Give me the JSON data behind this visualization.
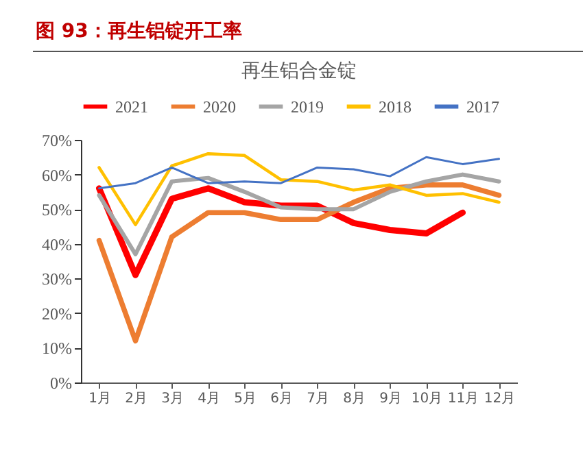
{
  "chart_data": {
    "type": "line",
    "title": "图 93：再生铝锭开工率",
    "subtitle": "再生铝合金锭",
    "categories": [
      "1月",
      "2月",
      "3月",
      "4月",
      "5月",
      "6月",
      "7月",
      "8月",
      "9月",
      "10月",
      "11月",
      "12月"
    ],
    "series": [
      {
        "name": "2021",
        "color": "#ff0000",
        "values": [
          56,
          31,
          53,
          56,
          52,
          51,
          51,
          46,
          44,
          43,
          49,
          null
        ]
      },
      {
        "name": "2020",
        "color": "#ed7d31",
        "values": [
          41,
          12,
          42,
          49,
          49,
          47,
          47,
          52,
          56,
          57,
          57,
          54
        ]
      },
      {
        "name": "2019",
        "color": "#a5a5a5",
        "values": [
          54,
          37,
          58,
          59,
          55,
          50.5,
          50,
          50,
          55,
          58,
          60,
          58
        ]
      },
      {
        "name": "2018",
        "color": "#ffc000",
        "values": [
          62,
          45.5,
          62.5,
          66,
          65.5,
          58.5,
          58,
          55.5,
          57,
          54,
          54.5,
          52
        ]
      },
      {
        "name": "2017",
        "color": "#4472c4",
        "values": [
          56,
          57.5,
          62,
          57.5,
          58,
          57.5,
          62,
          61.5,
          59.5,
          65,
          63,
          64.5
        ]
      }
    ],
    "ylim": [
      0,
      70
    ],
    "yticks": [
      {
        "value": 0,
        "label": "0%"
      },
      {
        "value": 10,
        "label": "10%"
      },
      {
        "value": 20,
        "label": "20%"
      },
      {
        "value": 30,
        "label": "30%"
      },
      {
        "value": 40,
        "label": "40%"
      },
      {
        "value": 50,
        "label": "50%"
      },
      {
        "value": 60,
        "label": "60%"
      },
      {
        "value": 70,
        "label": "70%"
      }
    ],
    "grid": false,
    "legend": "top",
    "marker": "none",
    "line_style": "solid"
  }
}
